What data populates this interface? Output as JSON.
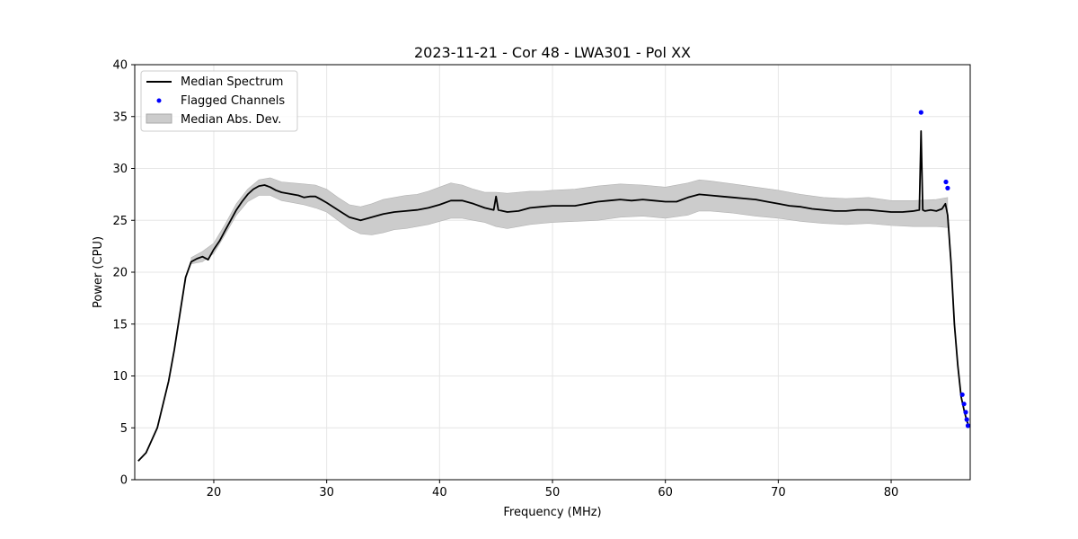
{
  "chart_data": {
    "type": "line",
    "title": "2023-11-21 - Cor 48 - LWA301 - Pol XX",
    "xlabel": "Frequency (MHz)",
    "ylabel": "Power (CPU)",
    "xlim": [
      13.0,
      87.0
    ],
    "ylim": [
      0,
      40
    ],
    "xticks": [
      20,
      30,
      40,
      50,
      60,
      70,
      80
    ],
    "yticks": [
      0,
      5,
      10,
      15,
      20,
      25,
      30,
      35,
      40
    ],
    "grid": true,
    "legend_position": "top-left",
    "legend": [
      "Median Spectrum",
      "Flagged Channels",
      "Median Abs. Dev."
    ],
    "series": [
      {
        "name": "Median Spectrum",
        "color": "#000000",
        "x": [
          13.3,
          14.0,
          15.0,
          16.0,
          16.5,
          17.0,
          17.5,
          18.0,
          18.5,
          19.0,
          19.5,
          20.0,
          20.5,
          21.0,
          21.5,
          22.0,
          22.5,
          23.0,
          23.5,
          24.0,
          24.5,
          25.0,
          25.5,
          26.0,
          26.5,
          27.0,
          27.5,
          28.0,
          28.5,
          29.0,
          29.5,
          30.0,
          31.0,
          32.0,
          33.0,
          34.0,
          35.0,
          36.0,
          37.0,
          38.0,
          39.0,
          40.0,
          41.0,
          42.0,
          43.0,
          44.0,
          44.8,
          45.0,
          45.2,
          46.0,
          47.0,
          48.0,
          49.0,
          50.0,
          51.0,
          52.0,
          53.0,
          54.0,
          55.0,
          56.0,
          57.0,
          58.0,
          59.0,
          60.0,
          61.0,
          62.0,
          63.0,
          64.0,
          65.0,
          66.0,
          67.0,
          68.0,
          69.0,
          70.0,
          71.0,
          72.0,
          73.0,
          74.0,
          75.0,
          76.0,
          77.0,
          78.0,
          79.0,
          80.0,
          81.0,
          82.0,
          82.5,
          82.65,
          82.8,
          83.0,
          83.5,
          84.0,
          84.5,
          84.8,
          85.0,
          85.3,
          85.6,
          85.9,
          86.2,
          86.5,
          86.7,
          86.9
        ],
        "y": [
          1.8,
          2.6,
          5.0,
          9.5,
          12.5,
          16.0,
          19.5,
          21.0,
          21.3,
          21.5,
          21.2,
          22.2,
          23.0,
          24.0,
          25.0,
          26.0,
          26.8,
          27.5,
          28.0,
          28.3,
          28.4,
          28.2,
          27.9,
          27.7,
          27.6,
          27.5,
          27.4,
          27.2,
          27.3,
          27.3,
          27.0,
          26.7,
          26.0,
          25.3,
          25.0,
          25.3,
          25.6,
          25.8,
          25.9,
          26.0,
          26.2,
          26.5,
          26.9,
          26.9,
          26.6,
          26.2,
          26.0,
          27.3,
          26.0,
          25.8,
          25.9,
          26.2,
          26.3,
          26.4,
          26.4,
          26.4,
          26.6,
          26.8,
          26.9,
          27.0,
          26.9,
          27.0,
          26.9,
          26.8,
          26.8,
          27.2,
          27.5,
          27.4,
          27.3,
          27.2,
          27.1,
          27.0,
          26.8,
          26.6,
          26.4,
          26.3,
          26.1,
          26.0,
          25.9,
          25.9,
          26.0,
          26.0,
          25.9,
          25.8,
          25.8,
          25.9,
          26.0,
          33.6,
          26.0,
          25.9,
          26.0,
          25.9,
          26.1,
          26.6,
          25.5,
          21.0,
          15.0,
          11.0,
          8.0,
          6.5,
          5.7,
          5.1
        ]
      },
      {
        "name": "Median Abs. Dev.",
        "type": "band",
        "color": "#cccccc",
        "x": [
          18.0,
          19.0,
          20.0,
          21.0,
          22.0,
          23.0,
          24.0,
          25.0,
          26.0,
          27.0,
          28.0,
          29.0,
          30.0,
          31.0,
          32.0,
          33.0,
          34.0,
          35.0,
          36.0,
          37.0,
          38.0,
          39.0,
          40.0,
          41.0,
          42.0,
          43.0,
          44.0,
          45.0,
          46.0,
          47.0,
          48.0,
          49.0,
          50.0,
          52.0,
          54.0,
          56.0,
          58.0,
          60.0,
          62.0,
          63.0,
          64.0,
          66.0,
          68.0,
          70.0,
          72.0,
          74.0,
          76.0,
          78.0,
          80.0,
          82.0,
          84.0,
          85.0
        ],
        "lower": [
          20.8,
          21.0,
          21.8,
          23.6,
          25.5,
          26.8,
          27.4,
          27.4,
          26.9,
          26.7,
          26.5,
          26.2,
          25.8,
          25.0,
          24.2,
          23.7,
          23.6,
          23.8,
          24.1,
          24.2,
          24.4,
          24.6,
          24.9,
          25.2,
          25.2,
          25.0,
          24.8,
          24.4,
          24.2,
          24.4,
          24.6,
          24.7,
          24.8,
          24.9,
          25.0,
          25.3,
          25.4,
          25.2,
          25.5,
          25.9,
          25.9,
          25.7,
          25.4,
          25.2,
          24.9,
          24.7,
          24.6,
          24.7,
          24.5,
          24.4,
          24.4,
          24.3
        ],
        "upper": [
          21.4,
          22.0,
          22.8,
          24.6,
          26.6,
          28.0,
          28.9,
          29.1,
          28.7,
          28.6,
          28.5,
          28.4,
          28.0,
          27.2,
          26.5,
          26.3,
          26.6,
          27.0,
          27.2,
          27.4,
          27.5,
          27.8,
          28.2,
          28.6,
          28.4,
          28.0,
          27.7,
          27.7,
          27.6,
          27.7,
          27.8,
          27.8,
          27.9,
          28.0,
          28.3,
          28.5,
          28.4,
          28.2,
          28.6,
          28.9,
          28.8,
          28.5,
          28.2,
          27.9,
          27.5,
          27.2,
          27.1,
          27.2,
          26.9,
          26.9,
          27.0,
          27.2
        ]
      },
      {
        "name": "Flagged Channels",
        "type": "scatter",
        "color": "#0000ff",
        "x": [
          82.65,
          84.85,
          85.0,
          86.3,
          86.45,
          86.6,
          86.7,
          86.8
        ],
        "y": [
          35.4,
          28.7,
          28.1,
          8.2,
          7.3,
          6.5,
          5.8,
          5.2
        ]
      }
    ]
  }
}
